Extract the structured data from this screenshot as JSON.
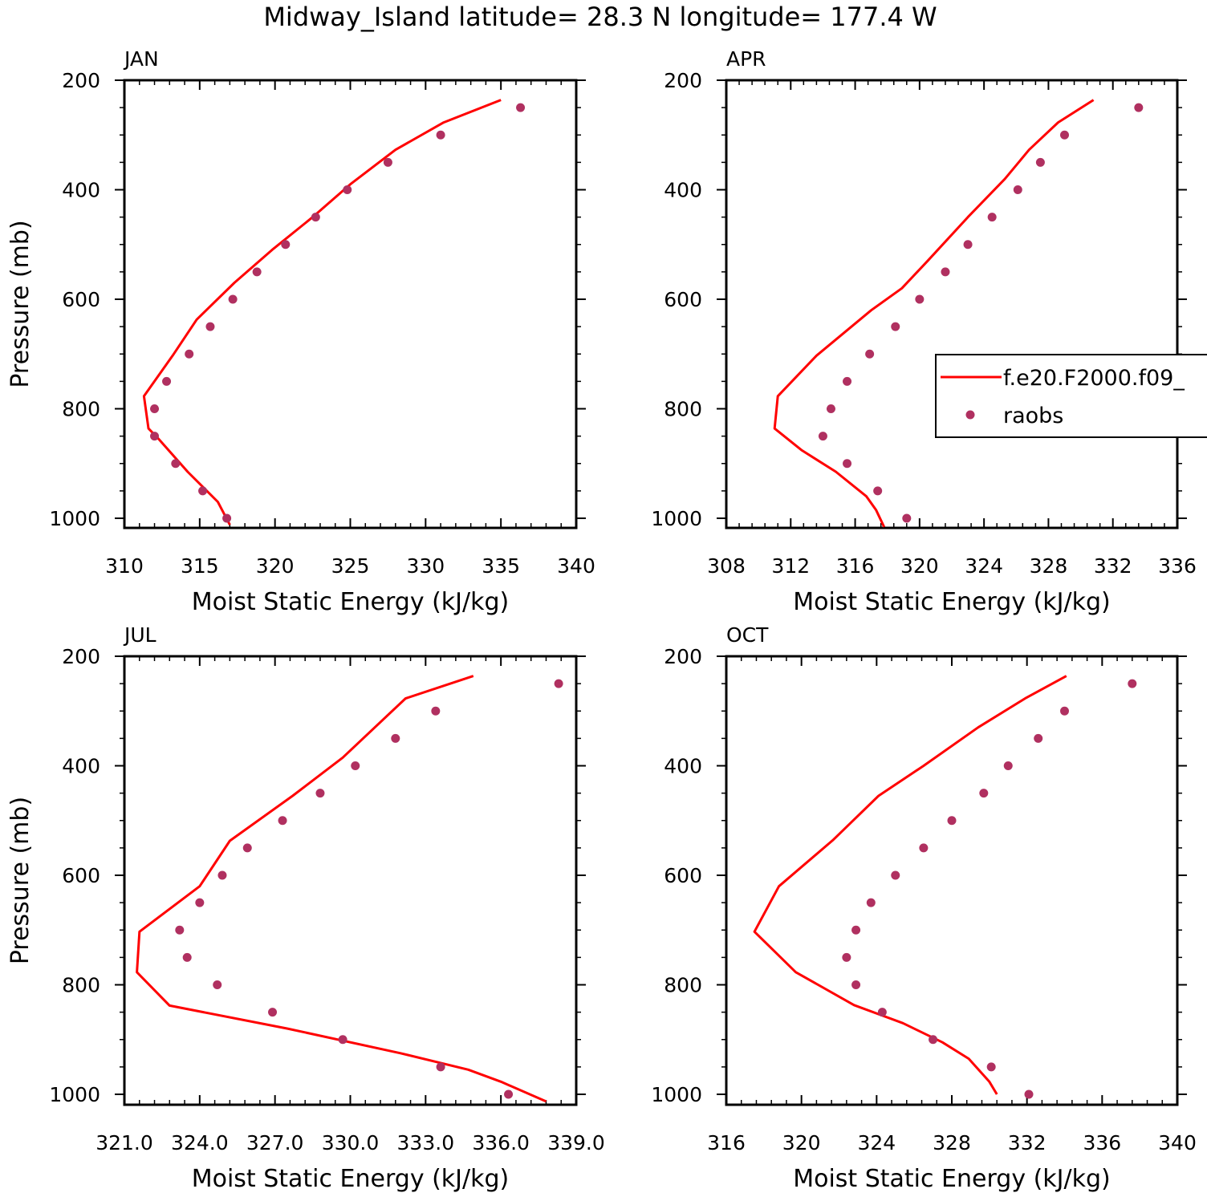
{
  "figure": {
    "title": "Midway_Island  latitude= 28.3 N longitude= 177.4 W",
    "colors": {
      "model": "#ff0000",
      "obs": "#b03060",
      "axis": "#000000"
    },
    "legend": {
      "model_label": "f.e20.F2000.f09_",
      "obs_label": "raobs",
      "placement": "inside-right of APR panel"
    }
  },
  "chart_data": [
    {
      "type": "line",
      "panel": "JAN",
      "xlabel": "Moist Static Energy (kJ/kg)",
      "ylabel": "Pressure (mb)",
      "xlim": [
        310,
        340
      ],
      "xticks": [
        310,
        315,
        320,
        325,
        330,
        335,
        340
      ],
      "xtick_labels": [
        "310",
        "315",
        "320",
        "325",
        "330",
        "335",
        "340"
      ],
      "ylim": [
        200,
        1000
      ],
      "yticks": [
        200,
        400,
        600,
        800,
        1000
      ],
      "ytick_labels": [
        "200",
        "400",
        "600",
        "800",
        "1000"
      ],
      "show_ylabel": true,
      "series": [
        {
          "name": "f.e20.F2000.f09_",
          "kind": "line",
          "x": [
            335.0,
            331.2,
            328.0,
            325.0,
            322.5,
            319.8,
            317.3,
            314.8,
            313.2,
            311.3,
            311.6,
            312.3,
            314.2,
            316.2,
            317.0
          ],
          "y": [
            236,
            277,
            327,
            390,
            450,
            510,
            570,
            637,
            703,
            777,
            836,
            856,
            915,
            970,
            1012
          ]
        },
        {
          "name": "raobs",
          "kind": "points",
          "x": [
            336.3,
            331.0,
            327.5,
            324.8,
            322.7,
            320.7,
            318.8,
            317.2,
            315.7,
            314.3,
            312.8,
            312.0,
            312.0,
            313.4,
            315.2,
            316.8
          ],
          "y": [
            250,
            300,
            350,
            400,
            450,
            500,
            550,
            600,
            650,
            700,
            750,
            800,
            850,
            900,
            950,
            1000
          ]
        }
      ]
    },
    {
      "type": "line",
      "panel": "APR",
      "xlabel": "Moist Static Energy (kJ/kg)",
      "ylabel": "",
      "xlim": [
        308,
        336
      ],
      "xticks": [
        308,
        312,
        316,
        320,
        324,
        328,
        332,
        336
      ],
      "xtick_labels": [
        "308",
        "312",
        "316",
        "320",
        "324",
        "328",
        "332",
        "336"
      ],
      "ylim": [
        200,
        1000
      ],
      "yticks": [
        200,
        400,
        600,
        800,
        1000
      ],
      "ytick_labels": [
        "200",
        "400",
        "600",
        "800",
        "1000"
      ],
      "show_ylabel": false,
      "series": [
        {
          "name": "f.e20.F2000.f09_",
          "kind": "line",
          "x": [
            330.8,
            328.6,
            326.8,
            325.3,
            323.0,
            320.5,
            318.9,
            317.0,
            313.6,
            311.2,
            311.0,
            312.7,
            314.8,
            316.7,
            317.3,
            317.8
          ],
          "y": [
            236,
            277,
            327,
            380,
            450,
            530,
            580,
            620,
            703,
            777,
            836,
            876,
            915,
            960,
            985,
            1016
          ]
        },
        {
          "name": "raobs",
          "kind": "points",
          "x": [
            333.6,
            329.0,
            327.5,
            326.1,
            324.5,
            323.0,
            321.6,
            320.0,
            318.5,
            316.9,
            315.5,
            314.5,
            314.0,
            315.5,
            317.4,
            319.2
          ],
          "y": [
            250,
            300,
            350,
            400,
            450,
            500,
            550,
            600,
            650,
            700,
            750,
            800,
            850,
            900,
            950,
            1000
          ]
        }
      ]
    },
    {
      "type": "line",
      "panel": "JUL",
      "xlabel": "Moist Static Energy (kJ/kg)",
      "ylabel": "Pressure (mb)",
      "xlim": [
        321.0,
        339.0
      ],
      "xticks": [
        321,
        324,
        327,
        330,
        333,
        336,
        339
      ],
      "xtick_labels": [
        "321.0",
        "324.0",
        "327.0",
        "330.0",
        "333.0",
        "336.0",
        "339.0"
      ],
      "ylim": [
        200,
        1000
      ],
      "yticks": [
        200,
        400,
        600,
        800,
        1000
      ],
      "ytick_labels": [
        "200",
        "400",
        "600",
        "800",
        "1000"
      ],
      "show_ylabel": true,
      "series": [
        {
          "name": "f.e20.F2000.f09_",
          "kind": "line",
          "x": [
            334.9,
            332.2,
            329.7,
            327.7,
            325.2,
            324.0,
            321.6,
            321.5,
            322.8,
            327.5,
            332.0,
            334.7,
            336.0,
            337.8
          ],
          "y": [
            236,
            277,
            385,
            455,
            537,
            620,
            703,
            777,
            838,
            880,
            925,
            955,
            977,
            1013
          ]
        },
        {
          "name": "raobs",
          "kind": "points",
          "x": [
            338.3,
            333.4,
            331.8,
            330.2,
            328.8,
            327.3,
            325.9,
            324.9,
            324.0,
            323.2,
            323.5,
            324.7,
            326.9,
            329.7,
            333.6,
            336.3
          ],
          "y": [
            250,
            300,
            350,
            400,
            450,
            500,
            550,
            600,
            650,
            700,
            750,
            800,
            850,
            900,
            950,
            1000
          ]
        }
      ]
    },
    {
      "type": "line",
      "panel": "OCT",
      "xlabel": "Moist Static Energy (kJ/kg)",
      "ylabel": "",
      "xlim": [
        316,
        340
      ],
      "xticks": [
        316,
        320,
        324,
        328,
        332,
        336,
        340
      ],
      "xtick_labels": [
        "316",
        "320",
        "324",
        "328",
        "332",
        "336",
        "340"
      ],
      "ylim": [
        200,
        1000
      ],
      "yticks": [
        200,
        400,
        600,
        800,
        1000
      ],
      "ytick_labels": [
        "200",
        "400",
        "600",
        "800",
        "1000"
      ],
      "show_ylabel": false,
      "series": [
        {
          "name": "f.e20.F2000.f09_",
          "kind": "line",
          "x": [
            334.1,
            331.9,
            329.4,
            326.5,
            324.1,
            321.7,
            318.8,
            317.5,
            319.7,
            322.8,
            325.4,
            327.5,
            328.9,
            330.0,
            330.4
          ],
          "y": [
            236,
            277,
            330,
            400,
            455,
            535,
            620,
            703,
            777,
            837,
            870,
            905,
            935,
            977,
            1000
          ]
        },
        {
          "name": "raobs",
          "kind": "points",
          "x": [
            337.6,
            334.0,
            332.6,
            331.0,
            329.7,
            328.0,
            326.5,
            325.0,
            323.7,
            322.9,
            322.4,
            322.9,
            324.3,
            327.0,
            330.1,
            332.1
          ],
          "y": [
            250,
            300,
            350,
            400,
            450,
            500,
            550,
            600,
            650,
            700,
            750,
            800,
            850,
            900,
            950,
            1000
          ]
        }
      ]
    }
  ]
}
